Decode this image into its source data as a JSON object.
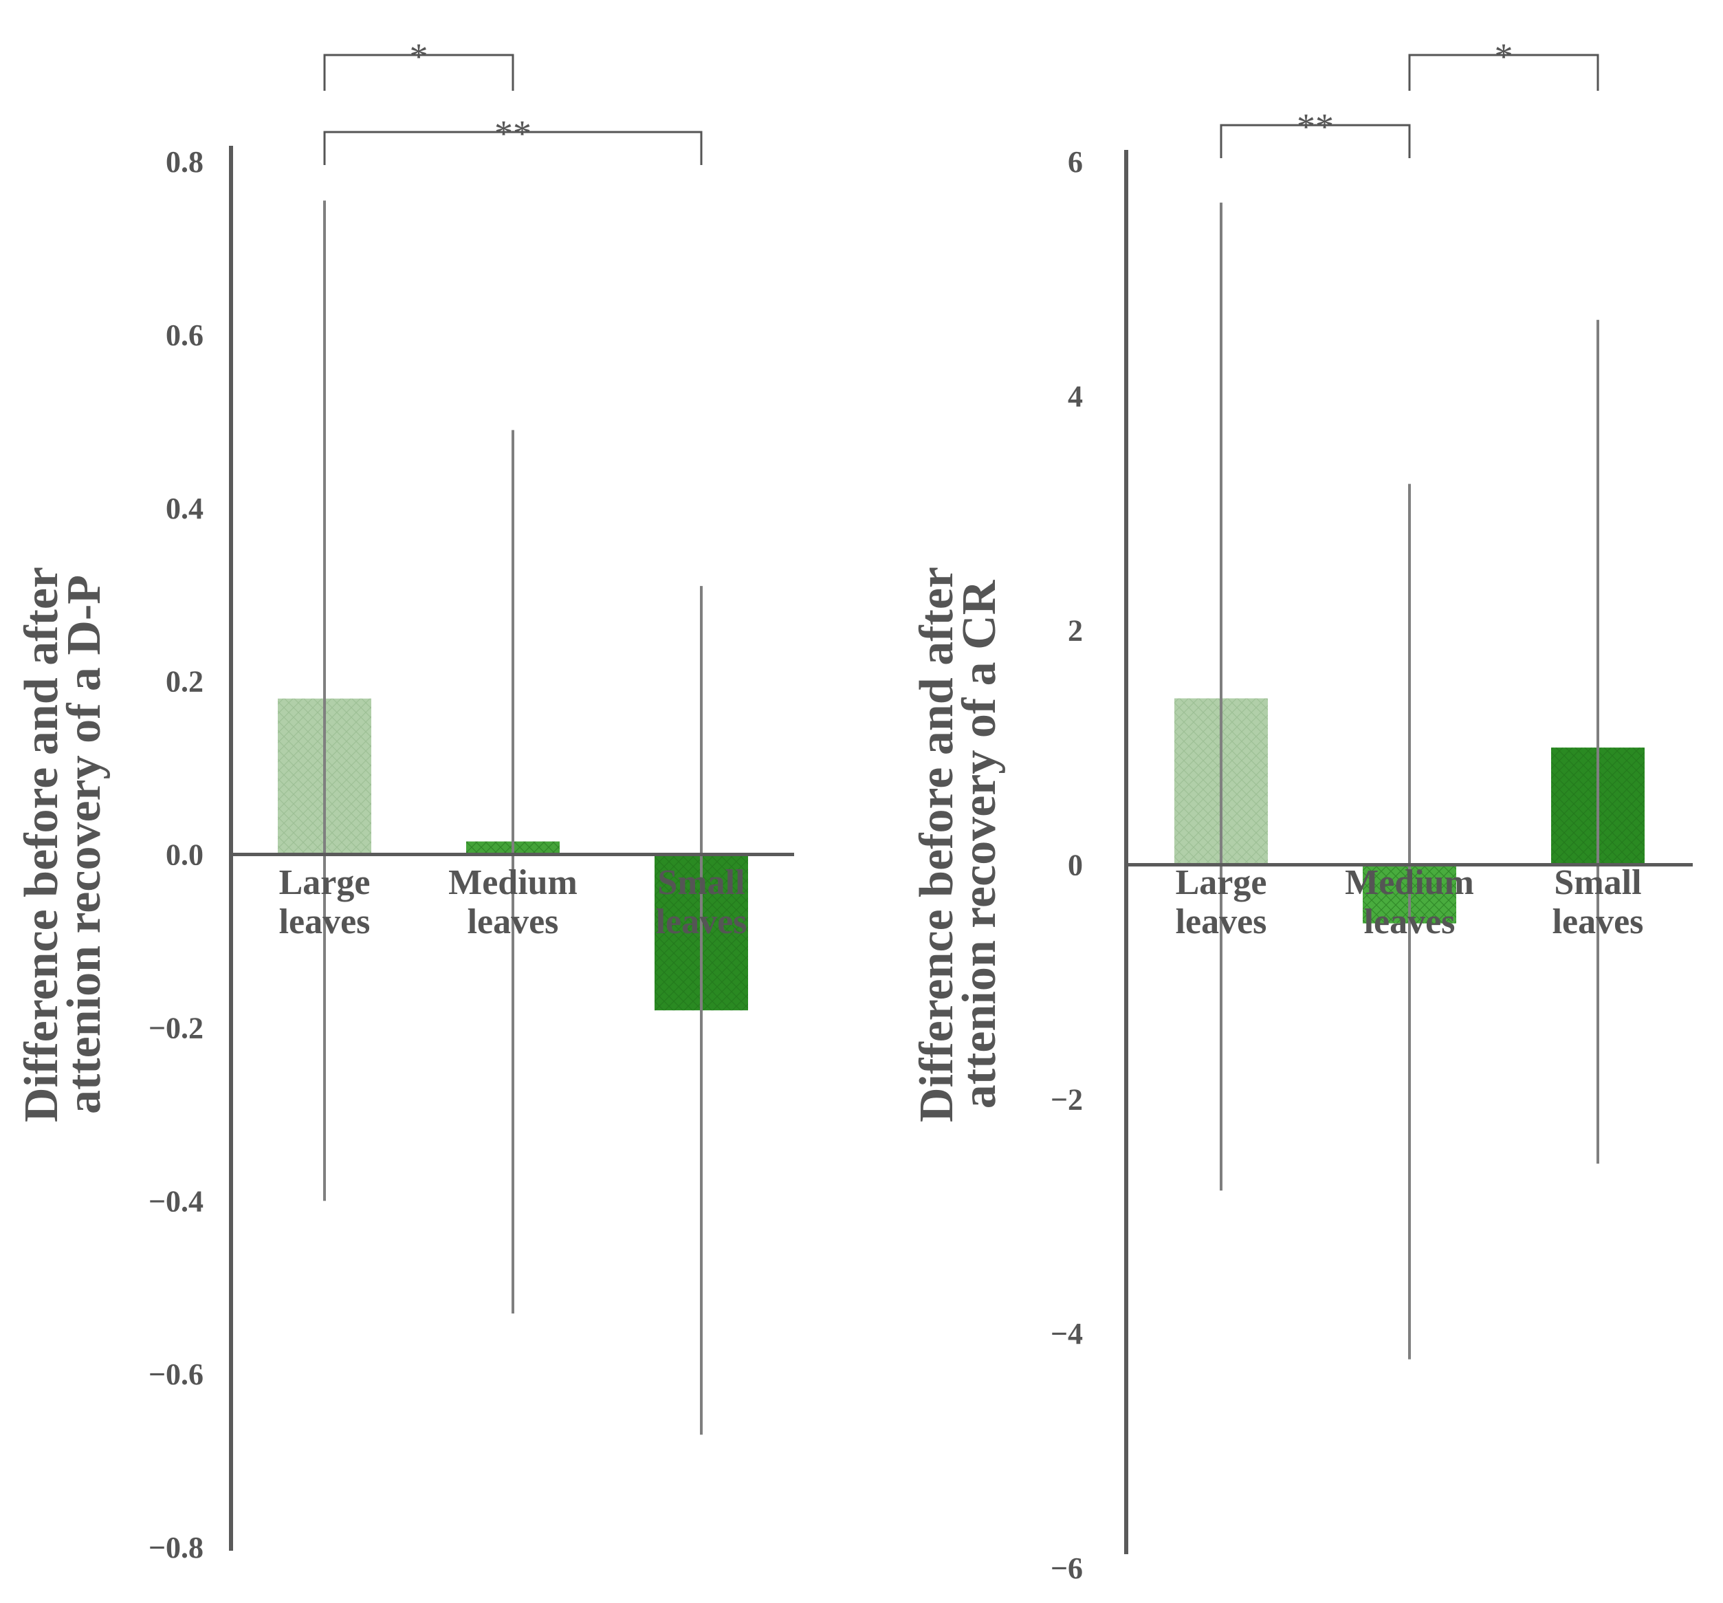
{
  "chart_data": [
    {
      "type": "bar",
      "categories": [
        {
          "line1": "Large",
          "line2": "leaves"
        },
        {
          "line1": "Medium",
          "line2": "leaves"
        },
        {
          "line1": "Small",
          "line2": "leaves"
        }
      ],
      "values": [
        0.18,
        0.015,
        -0.18
      ],
      "error_low": [
        -0.4,
        -0.53,
        -0.67
      ],
      "error_high": [
        0.755,
        0.49,
        0.31
      ],
      "colors": [
        "#a9caa0",
        "#3a9e2e",
        "#2a8a22"
      ],
      "ylabel_line1": "Difference before and after",
      "ylabel_line2": "attenion recovery of a D-P",
      "ylim": [
        -0.8,
        0.8
      ],
      "yticks": [
        0.8,
        0.6,
        0.4,
        0.2,
        0.0,
        -0.2,
        -0.4,
        -0.6,
        -0.8
      ],
      "ytick_labels": [
        "0.8",
        "0.6",
        "0.4",
        "0.2",
        "0.0",
        "−0.2",
        "−0.4",
        "−0.6",
        "−0.8"
      ],
      "significance": [
        {
          "from": 0,
          "to": 1,
          "label": "*"
        },
        {
          "from": 0,
          "to": 2,
          "label": "**"
        }
      ]
    },
    {
      "type": "bar",
      "categories": [
        {
          "line1": "Large",
          "line2": "leaves"
        },
        {
          "line1": "Medium",
          "line2": "leaves"
        },
        {
          "line1": "Small",
          "line2": "leaves"
        }
      ],
      "values": [
        1.42,
        -0.5,
        1.0
      ],
      "error_low": [
        -2.78,
        -4.22,
        -2.55
      ],
      "error_high": [
        5.65,
        3.25,
        4.65
      ],
      "colors": [
        "#a9caa0",
        "#3fa834",
        "#2a8a22"
      ],
      "ylabel_line1": "Difference before and after",
      "ylabel_line2": "attenion recovery of a CR",
      "ylim": [
        -6,
        6
      ],
      "yticks": [
        6,
        4,
        2,
        0,
        -2,
        -4,
        -6
      ],
      "ytick_labels": [
        "6",
        "4",
        "2",
        "0",
        "−2",
        "−4",
        "−6"
      ],
      "significance": [
        {
          "from": 0,
          "to": 1,
          "label": "**"
        },
        {
          "from": 1,
          "to": 2,
          "label": "*"
        }
      ]
    }
  ]
}
